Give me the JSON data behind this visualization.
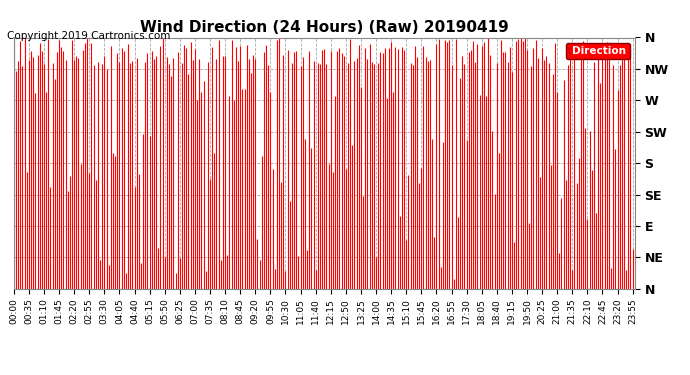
{
  "title": "Wind Direction (24 Hours) (Raw) 20190419",
  "copyright_text": "Copyright 2019 Cartronics.com",
  "background_color": "#ffffff",
  "plot_bg_color": "#ffffff",
  "line_color": "#ff0000",
  "grid_color": "#aaaaaa",
  "ytick_labels": [
    "N",
    "NE",
    "E",
    "SE",
    "S",
    "SW",
    "W",
    "NW",
    "N"
  ],
  "ytick_values": [
    0,
    45,
    90,
    135,
    180,
    225,
    270,
    315,
    360
  ],
  "ylim": [
    0,
    360
  ],
  "legend_label": "Direction",
  "legend_bg": "#ff0000",
  "legend_text_color": "#ffffff",
  "title_fontsize": 11,
  "copyright_fontsize": 7.5,
  "axis_label_fontsize": 9,
  "n_points": 288,
  "seed": 42
}
